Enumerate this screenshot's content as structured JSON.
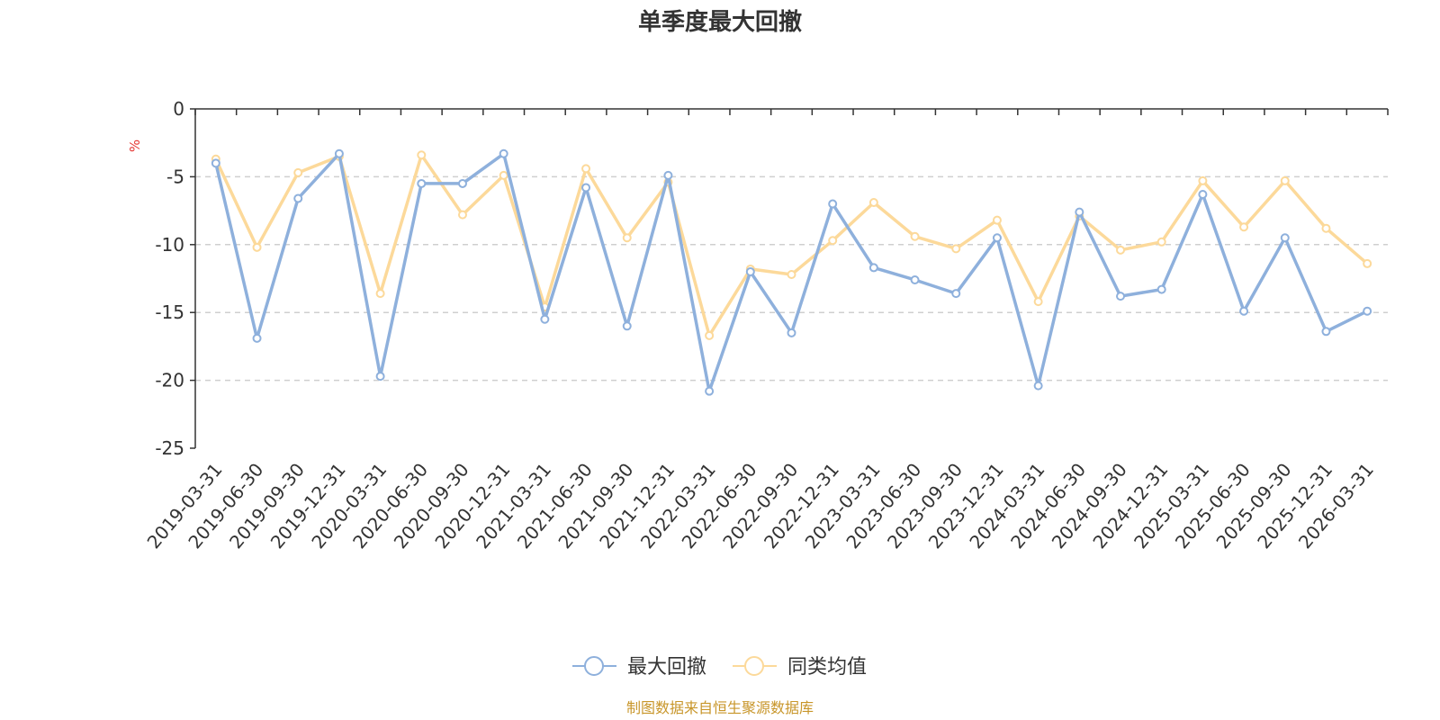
{
  "chart_data": {
    "type": "line",
    "title": "单季度最大回撤",
    "ylabel": "%",
    "ylim": [
      -25,
      0
    ],
    "yticks": [
      0,
      -5,
      -10,
      -15,
      -20,
      -25
    ],
    "grid": true,
    "legend_position": "bottom",
    "categories": [
      "2019-03-31",
      "2019-06-30",
      "2019-09-30",
      "2019-12-31",
      "2020-03-31",
      "2020-06-30",
      "2020-09-30",
      "2020-12-31",
      "2021-03-31",
      "2021-06-30",
      "2021-09-30",
      "2021-12-31",
      "2022-03-31",
      "2022-06-30",
      "2022-09-30",
      "2022-12-31",
      "2023-03-31",
      "2023-06-30",
      "2023-09-30",
      "2023-12-31",
      "2024-03-31",
      "2024-06-30",
      "2024-09-30",
      "2024-12-31",
      "2025-03-31",
      "2025-06-30",
      "2025-09-30",
      "2025-12-31",
      "2026-03-31"
    ],
    "series": [
      {
        "name": "最大回撤",
        "color": "#8eb0dc",
        "values": [
          -4.0,
          -16.9,
          -6.6,
          -3.3,
          -19.7,
          -5.5,
          -5.5,
          -3.3,
          -15.5,
          -5.8,
          -16.0,
          -4.9,
          -20.8,
          -12.0,
          -16.5,
          -7.0,
          -11.7,
          -12.6,
          -13.6,
          -9.5,
          -20.4,
          -7.6,
          -13.8,
          -13.3,
          -6.3,
          -14.9,
          -9.5,
          -16.4,
          -14.9
        ]
      },
      {
        "name": "同类均值",
        "color": "#fcd99a",
        "values": [
          -3.7,
          -10.2,
          -4.7,
          -3.5,
          -13.6,
          -3.4,
          -7.8,
          -4.9,
          -14.6,
          -4.4,
          -9.5,
          -5.4,
          -16.7,
          -11.8,
          -12.2,
          -9.7,
          -6.9,
          -9.4,
          -10.3,
          -8.2,
          -14.2,
          -7.9,
          -10.4,
          -9.8,
          -5.3,
          -8.7,
          -5.3,
          -8.8,
          -11.4
        ]
      }
    ],
    "source": "制图数据来自恒生聚源数据库"
  }
}
